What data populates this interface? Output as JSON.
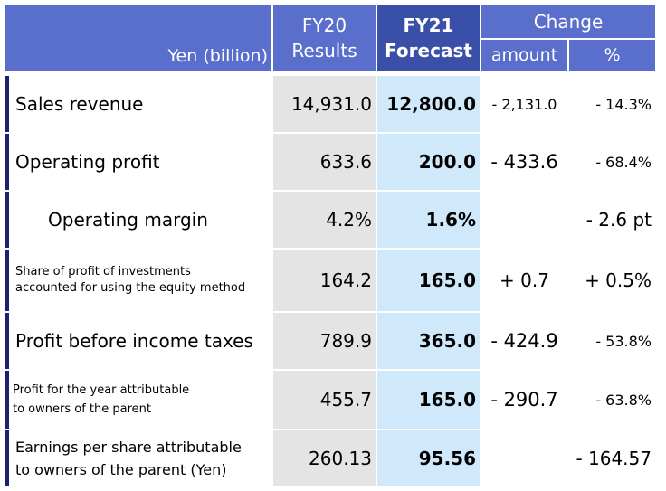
{
  "header": {
    "unit_label": "Yen (billion)",
    "fy20_line1": "FY20",
    "fy20_line2": "Results",
    "fy21_line1": "FY21",
    "fy21_line2": "Forecast",
    "change_label": "Change",
    "amount_label": "amount",
    "percent_label": "%"
  },
  "rows": [
    {
      "label_1": "Sales revenue",
      "label_2": "",
      "fy20": "14,931.0",
      "fy21": "12,800.0",
      "amount": "- 2,131.0",
      "percent": "- 14.3%"
    },
    {
      "label_1": "Operating profit",
      "label_2": "",
      "fy20": "633.6",
      "fy21": "200.0",
      "amount": "- 433.6",
      "percent": "- 68.4%"
    },
    {
      "label_1": "Operating margin",
      "label_2": "",
      "fy20": "4.2%",
      "fy21": "1.6%",
      "amount": "",
      "percent": "- 2.6 pt"
    },
    {
      "label_1": "Share of profit of investments",
      "label_2": "accounted for using the equity method",
      "fy20": "164.2",
      "fy21": "165.0",
      "amount": "+ 0.7",
      "percent": "+ 0.5%"
    },
    {
      "label_1": "Profit before income taxes",
      "label_2": "",
      "fy20": "789.9",
      "fy21": "365.0",
      "amount": "- 424.9",
      "percent": "- 53.8%"
    },
    {
      "label_1": "Profit for the year attributable",
      "label_2": "to owners of the parent",
      "fy20": "455.7",
      "fy21": "165.0",
      "amount": "- 290.7",
      "percent": "- 63.8%"
    },
    {
      "label_1": "Earnings per share attributable",
      "label_2": "to owners of the parent (Yen)",
      "fy20": "260.13",
      "fy21": "95.56",
      "amount": "",
      "percent": "- 164.57"
    }
  ]
}
